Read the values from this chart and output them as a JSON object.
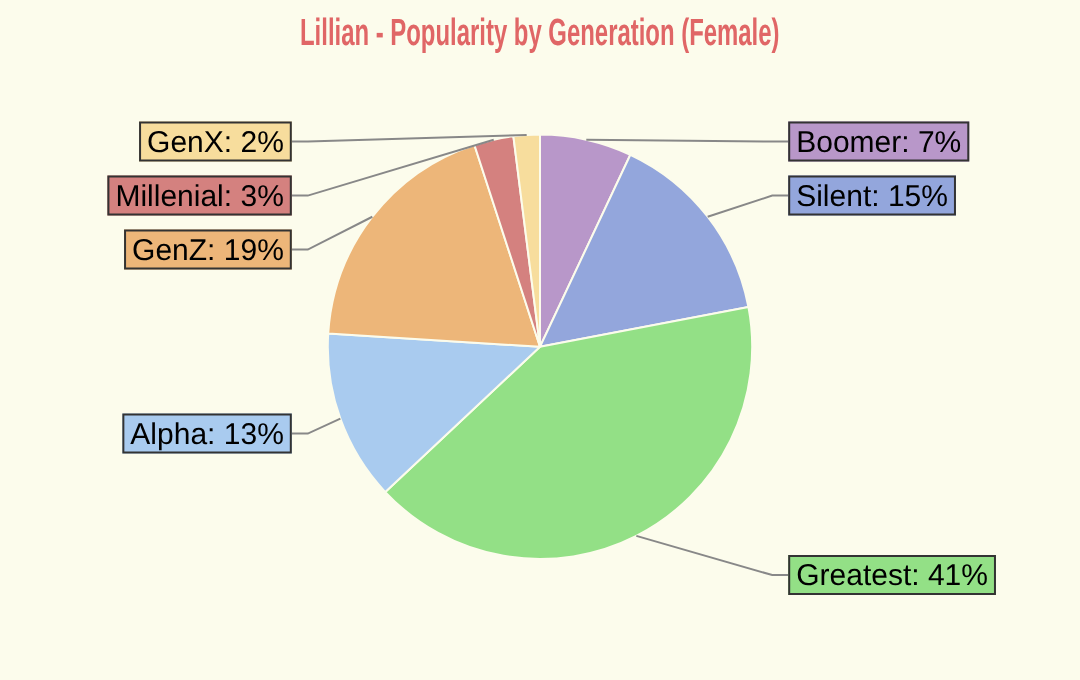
{
  "chart_data": {
    "type": "pie",
    "title": "Lillian - Popularity by Generation (Female)",
    "categories": [
      "Boomer",
      "Silent",
      "Greatest",
      "Alpha",
      "GenZ",
      "Millenial",
      "GenX"
    ],
    "values": [
      7,
      15,
      41,
      13,
      19,
      3,
      2
    ],
    "colors": [
      "#b897c9",
      "#93a6dc",
      "#93e086",
      "#a9cbef",
      "#edb679",
      "#d4817f",
      "#f7dd9d"
    ],
    "value_labels": [
      "7%",
      "15%",
      "41%",
      "13%",
      "19%",
      "3%",
      "2%"
    ],
    "legend": false
  }
}
